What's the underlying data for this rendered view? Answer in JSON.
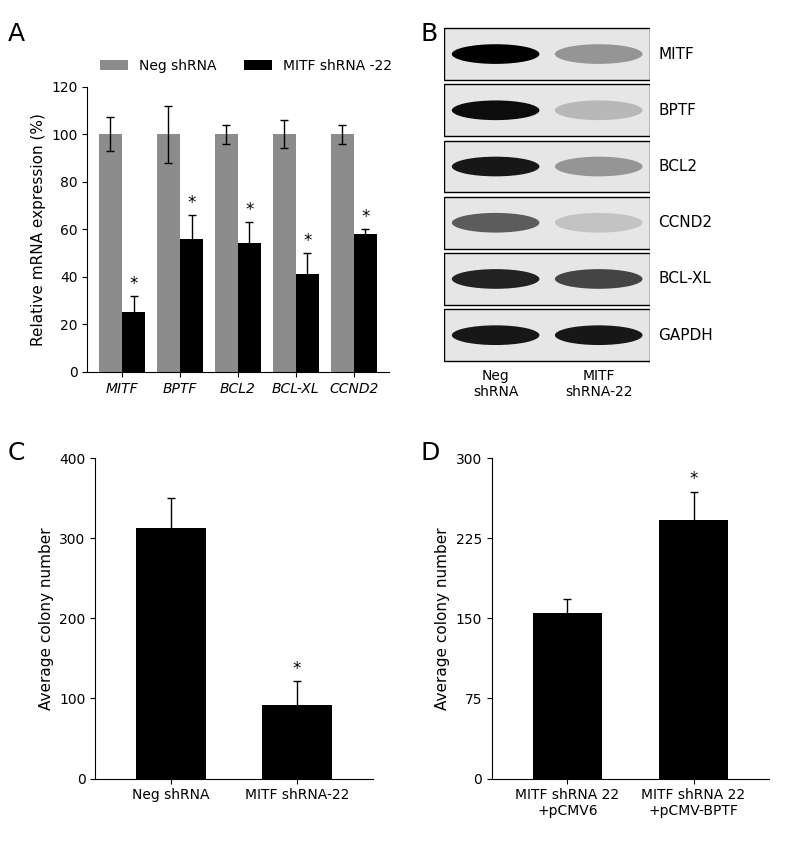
{
  "chart_data": [
    {
      "panel": "A",
      "type": "bar",
      "categories": [
        "MITF",
        "BPTF",
        "BCL2",
        "BCL-XL",
        "CCND2"
      ],
      "y_label": "Relative mRNA expression (%)",
      "ylim": [
        0,
        120
      ],
      "yticks": [
        0,
        20,
        40,
        60,
        80,
        100,
        120
      ],
      "legend": "upper left",
      "series": [
        {
          "name": "Neg shRNA",
          "color": "#8c8c8c",
          "values": [
            100,
            100,
            100,
            100,
            100
          ],
          "errors": [
            7,
            12,
            4,
            6,
            4
          ]
        },
        {
          "name": "MITF shRNA -22",
          "color": "#000000",
          "values": [
            25,
            56,
            54,
            41,
            58
          ],
          "errors": [
            7,
            10,
            9,
            9,
            2
          ],
          "annotations": [
            "*",
            "*",
            "*",
            "*",
            "*"
          ]
        }
      ]
    },
    {
      "panel": "B",
      "type": "western_blot",
      "bands": [
        "MITF",
        "BPTF",
        "BCL2",
        "CCND2",
        "BCL-XL",
        "GAPDH"
      ],
      "lanes": [
        "Neg\nshRNA",
        "MITF\nshRNA-22"
      ],
      "band_intensity": [
        [
          1.0,
          0.35
        ],
        [
          0.95,
          0.2
        ],
        [
          0.9,
          0.35
        ],
        [
          0.6,
          0.15
        ],
        [
          0.85,
          0.7
        ],
        [
          0.9,
          0.9
        ]
      ]
    },
    {
      "panel": "C",
      "type": "bar",
      "categories": [
        "Neg shRNA",
        "MITF shRNA-22"
      ],
      "y_label": "Average colony number",
      "ylim": [
        0,
        400
      ],
      "yticks": [
        0,
        100,
        200,
        300,
        400
      ],
      "color": "#000000",
      "values": [
        313,
        92
      ],
      "errors": [
        38,
        30
      ],
      "annotations": [
        null,
        "*"
      ]
    },
    {
      "panel": "D",
      "type": "bar",
      "categories": [
        "MITF shRNA 22\n+pCMV6",
        "MITF shRNA 22\n+pCMV-BPTF"
      ],
      "y_label": "Average colony number",
      "ylim": [
        0,
        300
      ],
      "yticks": [
        0,
        75,
        150,
        225,
        300
      ],
      "color": "#000000",
      "values": [
        155,
        242
      ],
      "errors": [
        13,
        27
      ],
      "annotations": [
        null,
        "*"
      ]
    }
  ]
}
